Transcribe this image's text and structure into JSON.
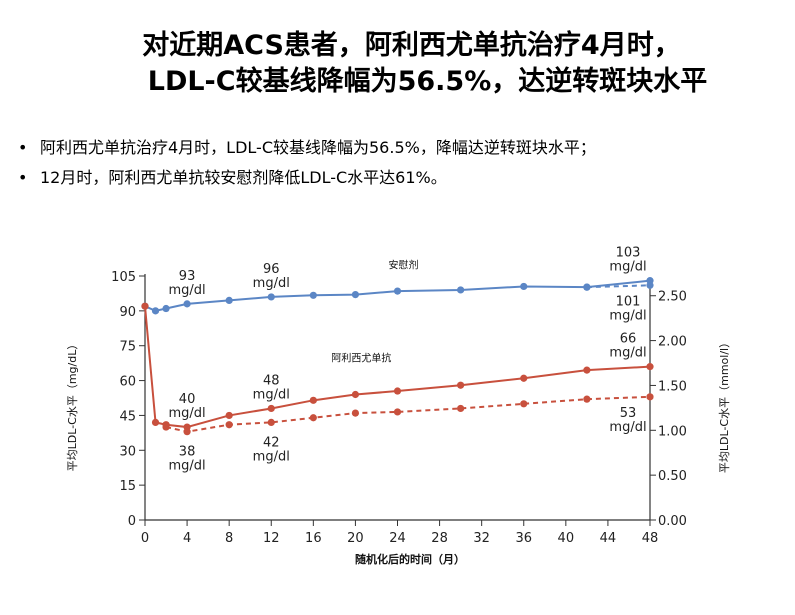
{
  "title": {
    "line1": "对近期ACS患者，阿利西尤单抗治疗4月时，",
    "line2": "LDL-C较基线降幅为56.5%，达逆转斑块水平"
  },
  "bullets": [
    "阿利西尤单抗治疗4月时，LDL-C较基线降幅为56.5%，降幅达逆转斑块水平；",
    "12月时，阿利西尤单抗较安慰剂降低LDL-C水平达61%。"
  ],
  "chart_data": {
    "type": "line",
    "xlabel": "随机化后的时间（月）",
    "ylabel_left": "平均LDL-C水平（mg/dL）",
    "ylabel_right": "平均LDL-C水平（mmol/l）",
    "x_ticks": [
      "0",
      "4",
      "8",
      "12",
      "16",
      "20",
      "24",
      "28",
      "32",
      "36",
      "40",
      "44",
      "48"
    ],
    "y_left_ticks": [
      "0",
      "15",
      "30",
      "45",
      "60",
      "75",
      "90",
      "105"
    ],
    "y_right_ticks": [
      "0.00",
      "0.50",
      "1.00",
      "1.50",
      "2.00",
      "2.50"
    ],
    "xlim": [
      0,
      48
    ],
    "ylim_left": [
      0,
      105
    ],
    "ylim_right": [
      0,
      2.72
    ],
    "colors": {
      "placebo": "#5b86c5",
      "alirocumab": "#c8503d"
    },
    "series": [
      {
        "name": "安慰剂",
        "style": "solid",
        "color": "#5b86c5",
        "x": [
          0,
          1,
          2,
          4,
          8,
          12,
          16,
          20,
          24,
          30,
          36,
          42,
          48
        ],
        "y": [
          92,
          90,
          91,
          93,
          94.5,
          96,
          96.7,
          97,
          98.5,
          99,
          100.5,
          100.2,
          103
        ]
      },
      {
        "name": "安慰剂 (虚线)",
        "style": "dashed",
        "color": "#5b86c5",
        "x": [
          42,
          48
        ],
        "y": [
          100.2,
          101
        ]
      },
      {
        "name": "阿利西尤单抗",
        "style": "solid",
        "color": "#c8503d",
        "x": [
          0,
          1,
          2,
          4,
          8,
          12,
          16,
          20,
          24,
          30,
          36,
          42,
          48
        ],
        "y": [
          92,
          42,
          41,
          40,
          45,
          48,
          51.5,
          54,
          55.5,
          58,
          61,
          64.5,
          66
        ]
      },
      {
        "name": "阿利西尤单抗 (虚线)",
        "style": "dashed",
        "color": "#c8503d",
        "x": [
          2,
          4,
          8,
          12,
          16,
          20,
          24,
          30,
          36,
          42,
          48
        ],
        "y": [
          40,
          38,
          41,
          42,
          44,
          46,
          46.5,
          48,
          50,
          52,
          53
        ]
      }
    ],
    "annotations": [
      {
        "text": "93",
        "sub": "mg/dl",
        "x": 4,
        "y": 93,
        "pos": "above"
      },
      {
        "text": "96",
        "sub": "mg/dl",
        "x": 12,
        "y": 96,
        "pos": "above"
      },
      {
        "text": "103",
        "sub": "mg/dl",
        "x": 48,
        "y": 103,
        "pos": "above-left"
      },
      {
        "text": "101",
        "sub": "mg/dl",
        "x": 48,
        "y": 101,
        "pos": "below-left"
      },
      {
        "text": "40",
        "sub": "mg/dl",
        "x": 4,
        "y": 40,
        "pos": "above"
      },
      {
        "text": "38",
        "sub": "mg/dl",
        "x": 4,
        "y": 38,
        "pos": "below"
      },
      {
        "text": "48",
        "sub": "mg/dl",
        "x": 12,
        "y": 48,
        "pos": "above"
      },
      {
        "text": "42",
        "sub": "mg/dl",
        "x": 12,
        "y": 42,
        "pos": "below"
      },
      {
        "text": "66",
        "sub": "mg/dl",
        "x": 48,
        "y": 66,
        "pos": "above-left"
      },
      {
        "text": "53",
        "sub": "mg/dl",
        "x": 48,
        "y": 53,
        "pos": "below-left"
      }
    ],
    "series_labels": [
      {
        "text": "安慰剂",
        "x": 24,
        "y": 110
      },
      {
        "text": "阿利西尤单抗",
        "x": 20,
        "y": 70
      }
    ]
  }
}
